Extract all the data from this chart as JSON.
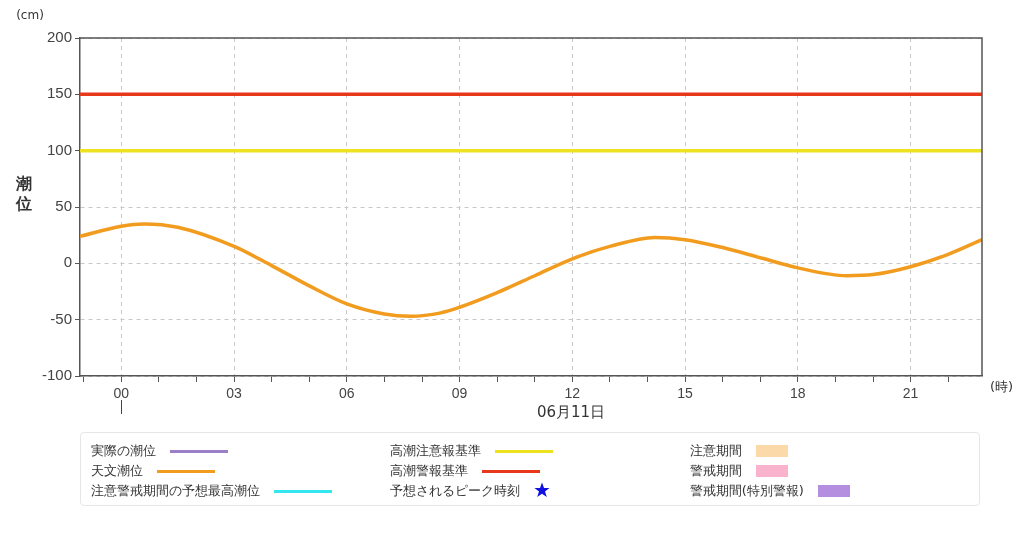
{
  "chart_data": {
    "type": "line",
    "ylabel": "潮位",
    "xlabel": "(時)",
    "annotations": [
      "(cm)",
      "06月11日"
    ],
    "xlim": [
      -1.1,
      22.9
    ],
    "xticks": [
      {
        "value": -1,
        "label": null
      },
      {
        "value": 0,
        "label": "00"
      },
      {
        "value": 1,
        "label": null
      },
      {
        "value": 2,
        "label": null
      },
      {
        "value": 3,
        "label": "03"
      },
      {
        "value": 4,
        "label": null
      },
      {
        "value": 5,
        "label": null
      },
      {
        "value": 6,
        "label": "06"
      },
      {
        "value": 7,
        "label": null
      },
      {
        "value": 8,
        "label": null
      },
      {
        "value": 9,
        "label": "09"
      },
      {
        "value": 10,
        "label": null
      },
      {
        "value": 11,
        "label": null
      },
      12,
      {
        "value": 13,
        "label": null
      },
      {
        "value": 14,
        "label": null
      },
      15,
      {
        "value": 16,
        "label": null
      },
      {
        "value": 17,
        "label": null
      },
      18,
      {
        "value": 19,
        "label": null
      },
      {
        "value": 20,
        "label": null
      },
      21,
      {
        "value": 22,
        "label": null
      }
    ],
    "ylim": [
      -100,
      200
    ],
    "yticks": [
      -100,
      -50,
      0,
      50,
      100,
      150,
      200
    ],
    "grid": true,
    "legend": "bottom",
    "marker": "none",
    "line_style": "solid",
    "series": [
      {
        "name": "実際の潮位",
        "color": "#9b7fc7"
      },
      {
        "name": "天文潮位",
        "color": "#f29c1f",
        "x": [
          -1.1,
          0,
          0.6,
          1.5,
          3,
          4,
          5,
          6,
          7,
          7.7,
          8.5,
          9,
          10,
          11,
          12,
          13,
          14.2,
          15,
          16,
          17,
          18,
          19.3,
          20,
          21,
          22,
          22.9
        ],
        "values": [
          24,
          33,
          35,
          32,
          15,
          -2,
          -20,
          -36,
          -45,
          -47,
          -44,
          -39,
          -26,
          -11,
          4,
          15,
          23,
          21,
          14,
          5,
          -4,
          -11,
          -10,
          -3,
          8,
          21
        ]
      },
      {
        "name": "注意警戒期間の予想最高潮位",
        "color": "#33e6f0"
      },
      {
        "name": "高潮注意報基準",
        "color": "#ede21f",
        "x": [
          -1.1,
          22.9
        ],
        "values": [
          100,
          100
        ]
      },
      {
        "name": "高潮警報基準",
        "color": "#e8381c",
        "x": [
          -1.1,
          22.9
        ],
        "values": [
          150,
          150
        ]
      },
      {
        "name": "予想されるピーク時刻",
        "type": "scatter",
        "marker": "star",
        "color": "#1010e0"
      },
      {
        "name": "注意期間",
        "type": "area",
        "color": "#fcd9a8"
      },
      {
        "name": "警戒期間",
        "type": "area",
        "color": "#f9b3cc"
      },
      {
        "name": "警戒期間(特別警報)",
        "type": "area",
        "color": "#b48fe0"
      }
    ]
  }
}
